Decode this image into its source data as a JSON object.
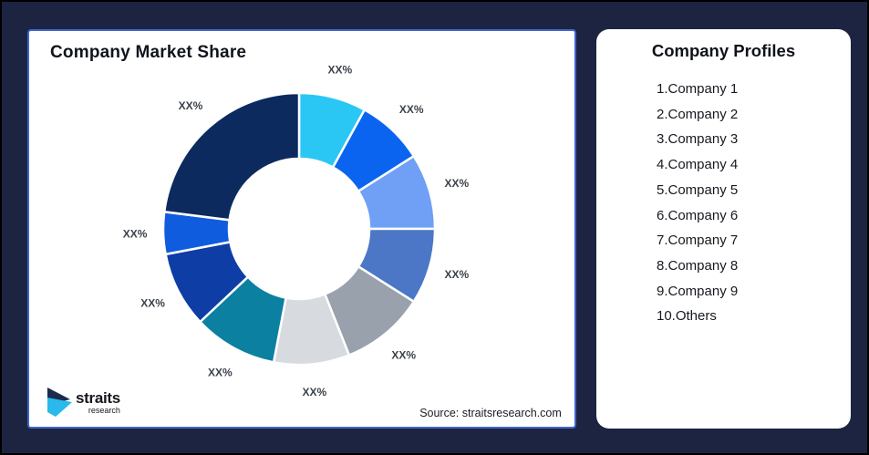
{
  "page": {
    "background_color": "#1C2442",
    "frame_border_color": "#000000",
    "left_card_border_color": "#4066CB"
  },
  "left_card": {
    "title": "Company Market Share",
    "source": "Source: straitsresearch.com",
    "logo": {
      "wordmark": "straits",
      "subtext": "research",
      "icon_navy": "#1D2A4D",
      "icon_cyan": "#29B9EA"
    }
  },
  "right_card": {
    "title": "Company Profiles",
    "companies": [
      "1.Company 1",
      "2.Company 2",
      "3.Company 3",
      "4.Company 4",
      "5.Company 5",
      "6.Company 6",
      "7.Company 7",
      "8.Company 8",
      "9.Company 9",
      "10.Others"
    ]
  },
  "chart_data": {
    "type": "pie",
    "subtype": "donut",
    "title": "Company Market Share",
    "start_angle_deg": 0,
    "direction": "clockwise",
    "legend_position": "none",
    "value_labels_shown": "placeholder percentages only",
    "slices": [
      {
        "label": "Company 1",
        "display_value": "XX%",
        "value": 8,
        "color": "#2BC7F4"
      },
      {
        "label": "Company 2",
        "display_value": "XX%",
        "value": 8,
        "color": "#0B64F0"
      },
      {
        "label": "Company 3",
        "display_value": "XX%",
        "value": 9,
        "color": "#6FA0F5"
      },
      {
        "label": "Company 4",
        "display_value": "XX%",
        "value": 9,
        "color": "#4B77C6"
      },
      {
        "label": "Company 5",
        "display_value": "XX%",
        "value": 10,
        "color": "#99A1AC"
      },
      {
        "label": "Company 6",
        "display_value": "XX%",
        "value": 9,
        "color": "#D7DBE0"
      },
      {
        "label": "Company 7",
        "display_value": "XX%",
        "value": 10,
        "color": "#0B80A1"
      },
      {
        "label": "Company 8",
        "display_value": "XX%",
        "value": 9,
        "color": "#0E3DA6"
      },
      {
        "label": "Company 9",
        "display_value": "XX%",
        "value": 5,
        "color": "#105CDE"
      },
      {
        "label": "Others",
        "display_value": "XX%",
        "value": 23,
        "color": "#0D2A5E"
      }
    ]
  }
}
